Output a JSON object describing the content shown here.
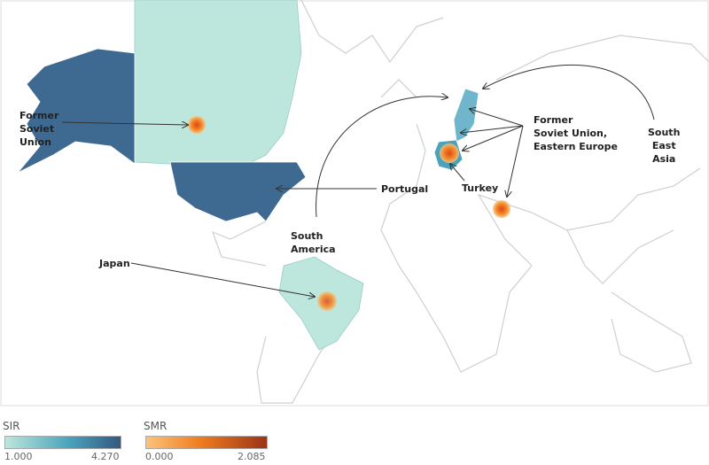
{
  "colors": {
    "sir_low": "#bde6dc",
    "sir_mid": "#4aa3bd",
    "sir_high": "#34597f",
    "smr_low": "#fbc37a",
    "smr_mid": "#f07c1f",
    "smr_high": "#9a3317",
    "land_border": "#c8c8c8"
  },
  "annotations": [
    {
      "text": "Former\nSoviet\nUnion"
    },
    {
      "text": "Portugal"
    },
    {
      "text": "South\nAmerica"
    },
    {
      "text": "Japan"
    },
    {
      "text": "Former\nSoviet Union,\nEastern Europe"
    },
    {
      "text": "Turkey"
    },
    {
      "text": "South\nEast\nAsia"
    }
  ],
  "legend": {
    "sir": {
      "title": "SIR",
      "min": "1.000",
      "max": "4.270"
    },
    "smr": {
      "title": "SMR",
      "min": "0.000",
      "max": "2.085"
    }
  }
}
